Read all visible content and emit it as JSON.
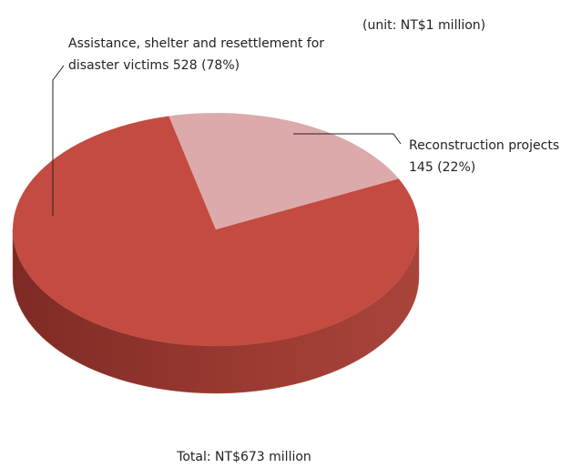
{
  "chart_data": {
    "type": "pie",
    "subtitle": "(unit: NT$1 million)",
    "note": "Total: NT$673 million",
    "categories": [
      "Assistance, shelter and resettlement for disaster victims",
      "Reconstruction projects"
    ],
    "values": [
      528,
      145
    ],
    "value_labels": [
      "528 (78%)",
      "145 (22%)"
    ],
    "colors": [
      "#c44b41",
      "#dcaaaa"
    ]
  }
}
